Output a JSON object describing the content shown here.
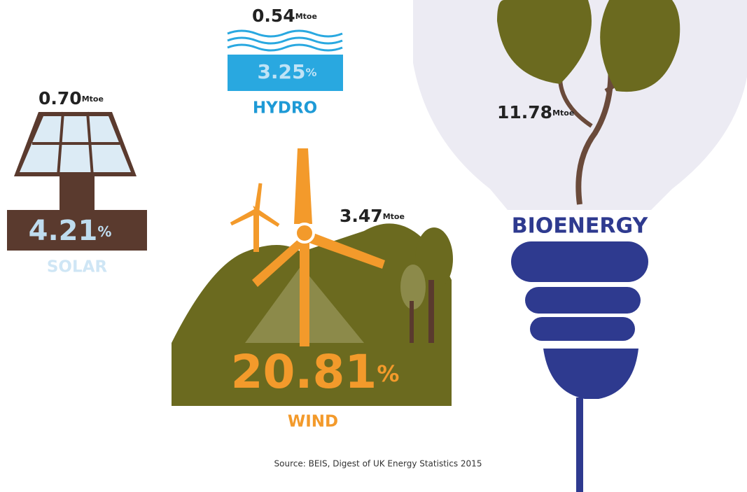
{
  "items": [
    {
      "label": "HYDRO",
      "amount": "0.54",
      "unit": "Mtoe",
      "share": "3.25",
      "share_unit": "%"
    },
    {
      "label": "SOLAR",
      "amount": "0.70",
      "unit": "Mtoe",
      "share": "4.21",
      "share_unit": "%"
    },
    {
      "label": "WIND",
      "amount": "3.47",
      "unit": "Mtoe",
      "share": "20.81",
      "share_unit": "%"
    },
    {
      "label": "BIOENERGY",
      "amount": "11.78",
      "unit": "Mtoe"
    }
  ],
  "source": "Source: BEIS, Digest of UK Energy Statistics 2015"
}
